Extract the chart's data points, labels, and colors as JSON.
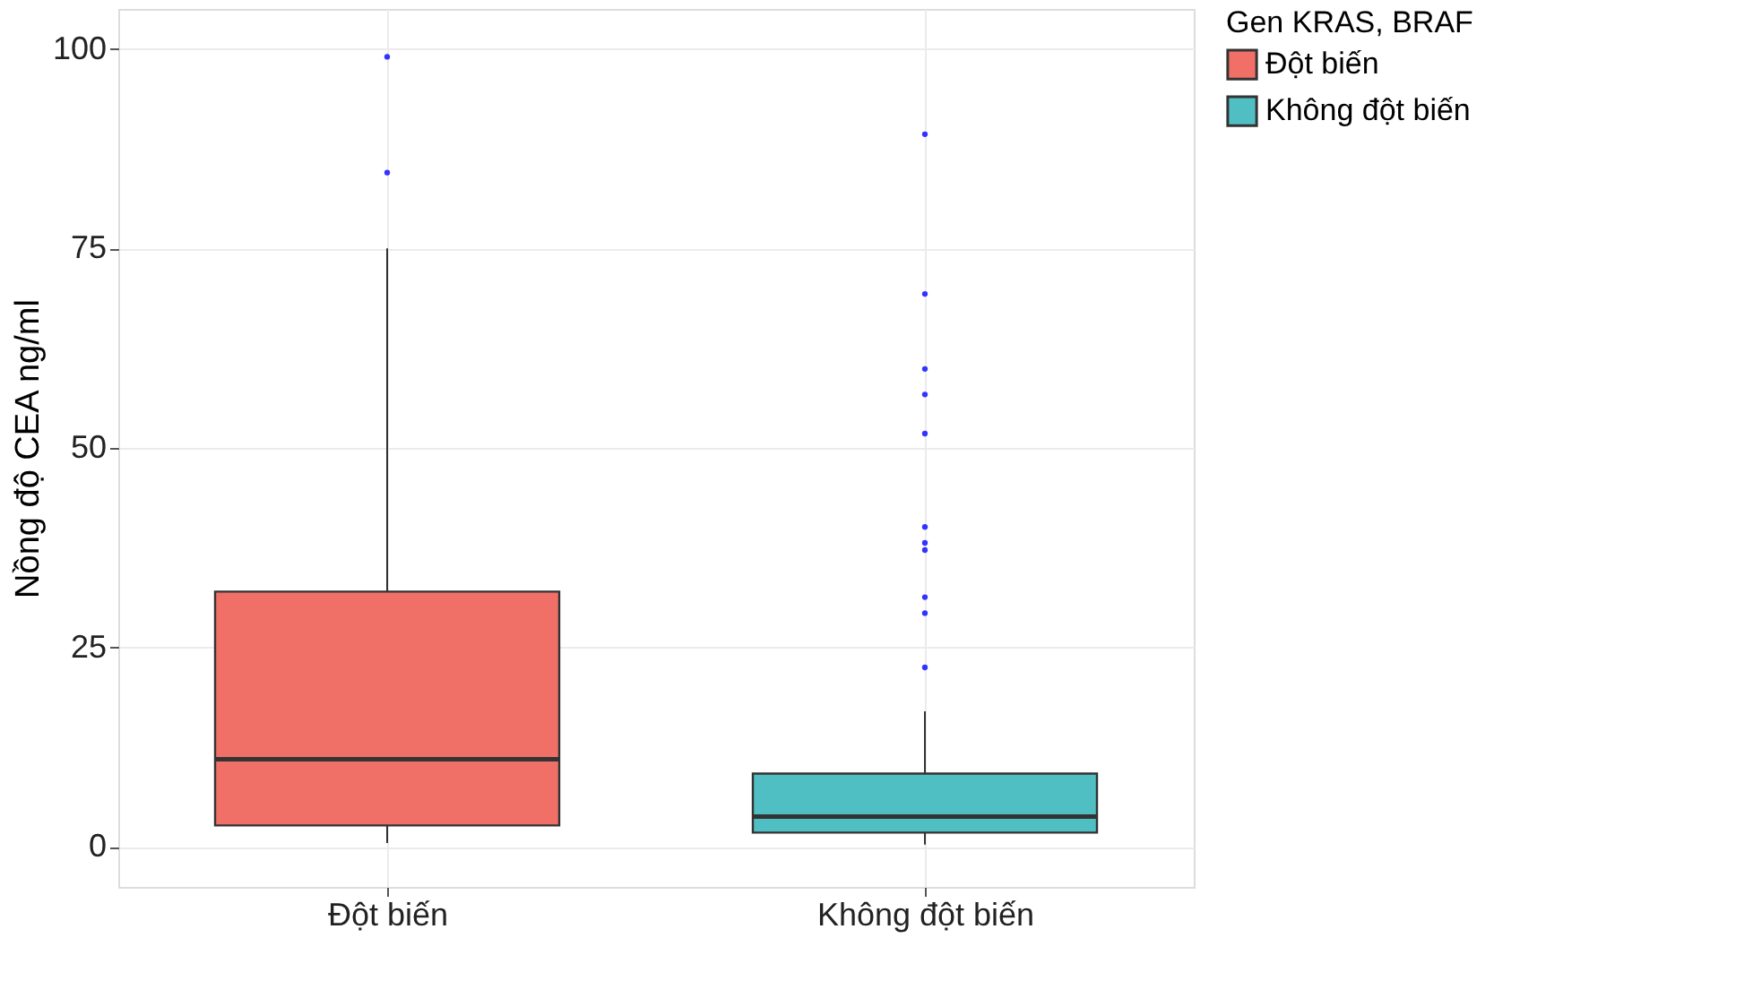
{
  "chart_data": {
    "type": "box",
    "ylabel": "Nồng độ CEA ng/ml",
    "legend_title": "Gen KRAS, BRAF",
    "categories": [
      "Đột biến",
      "Không đột biến"
    ],
    "series": [
      {
        "name": "Đột biến",
        "color": "#f07068",
        "boxes": [
          {
            "low": 0.5,
            "q1": 2.7,
            "median": 11,
            "q3": 32,
            "high": 75,
            "outliers": [
              99,
              84.5
            ]
          },
          null
        ]
      },
      {
        "name": "Không đột biến",
        "color": "#50bfc3",
        "boxes": [
          null,
          {
            "low": 0.3,
            "q1": 1.8,
            "median": 3.8,
            "q3": 9.2,
            "high": 17,
            "outliers": [
              89.3,
              69.3,
              59.9,
              56.7,
              51.8,
              40.1,
              38.1,
              37.2,
              31.3,
              29.3,
              22.5
            ]
          }
        ]
      }
    ],
    "ylim": [
      -5,
      105
    ],
    "yticks": [
      0,
      25,
      50,
      75,
      100
    ],
    "grid": true,
    "legend": "right"
  }
}
